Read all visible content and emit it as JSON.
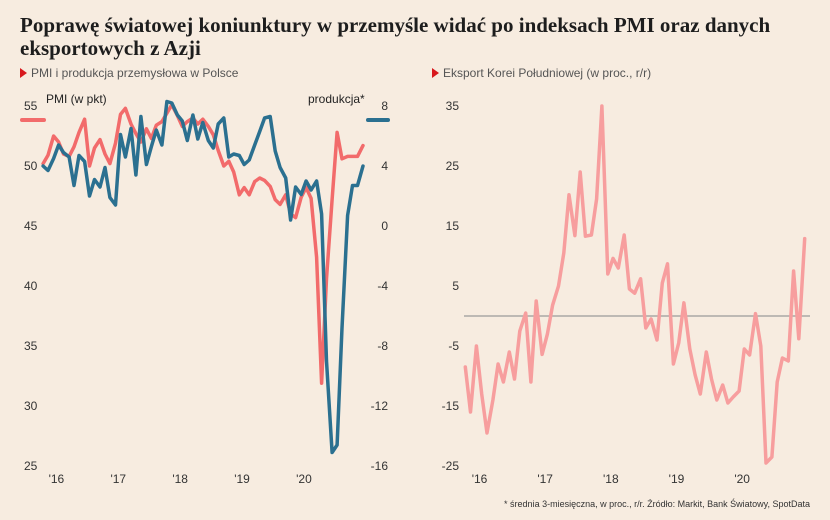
{
  "headline": "Poprawę światowej koniunktury w przemyśle widać po indeksach PMI oraz danych eksportowych z Azji",
  "source": "* średnia 3-miesięczna, w proc., r/r. Źródło: Markit, Bank Światowy, SpotData",
  "colors": {
    "pmi": "#f26b6b",
    "production": "#2b7090",
    "exports": "#f79e9e",
    "zero_line": "#9a9a9a",
    "marker": "#d8191e"
  },
  "chart_data": [
    {
      "type": "line",
      "title": "PMI i produkcja przemysłowa w Polsce",
      "x_tick_labels": [
        "'16",
        "'17",
        "'18",
        "'19",
        "'20"
      ],
      "x_tick_positions": [
        2016.0,
        2017.0,
        2018.0,
        2019.0,
        2020.0
      ],
      "xlim": [
        2015.7,
        2021.0
      ],
      "y_left": {
        "label": "PMI (w pkt)",
        "lim": [
          25,
          55
        ],
        "ticks": [
          25,
          30,
          35,
          40,
          45,
          50,
          55
        ]
      },
      "y_right": {
        "label": "produkcja*",
        "lim": [
          -16,
          8
        ],
        "ticks": [
          -16,
          -12,
          -8,
          -4,
          0,
          4,
          8
        ]
      },
      "series": [
        {
          "name": "PMI (w pkt)",
          "axis": "left",
          "color": "#f26b6b",
          "x": [
            2015.75,
            2015.83,
            2015.92,
            2016.0,
            2016.08,
            2016.17,
            2016.25,
            2016.33,
            2016.42,
            2016.5,
            2016.58,
            2016.67,
            2016.75,
            2016.83,
            2016.92,
            2017.0,
            2017.08,
            2017.17,
            2017.25,
            2017.33,
            2017.42,
            2017.5,
            2017.58,
            2017.67,
            2017.75,
            2017.83,
            2017.92,
            2018.0,
            2018.08,
            2018.17,
            2018.25,
            2018.33,
            2018.42,
            2018.5,
            2018.58,
            2018.67,
            2018.75,
            2018.83,
            2018.92,
            2019.0,
            2019.08,
            2019.17,
            2019.25,
            2019.33,
            2019.42,
            2019.5,
            2019.58,
            2019.67,
            2019.75,
            2019.83,
            2019.92,
            2020.0,
            2020.08,
            2020.17,
            2020.25,
            2020.33,
            2020.42,
            2020.5,
            2020.58,
            2020.67,
            2020.75,
            2020.83,
            2020.92
          ],
          "y": [
            50.2,
            50.9,
            52.5,
            52.0,
            51.0,
            50.8,
            51.6,
            52.8,
            53.9,
            50.0,
            51.5,
            52.2,
            51.0,
            50.2,
            51.9,
            54.3,
            54.8,
            53.5,
            52.7,
            52.0,
            53.1,
            52.3,
            53.4,
            53.7,
            54.4,
            55.1,
            54.2,
            53.3,
            53.7,
            54.0,
            53.5,
            53.9,
            53.3,
            52.6,
            51.3,
            50.0,
            50.4,
            49.5,
            47.6,
            48.2,
            47.6,
            48.7,
            49.0,
            48.8,
            48.3,
            47.2,
            46.8,
            47.6,
            46.0,
            45.7,
            47.4,
            48.2,
            47.3,
            42.4,
            31.9,
            40.6,
            47.2,
            52.8,
            50.6,
            50.8,
            50.8,
            50.8,
            51.7
          ]
        },
        {
          "name": "produkcja*",
          "axis": "right",
          "color": "#2b7090",
          "x": [
            2015.75,
            2015.83,
            2015.92,
            2016.0,
            2016.08,
            2016.17,
            2016.25,
            2016.33,
            2016.42,
            2016.5,
            2016.58,
            2016.67,
            2016.75,
            2016.83,
            2016.92,
            2017.0,
            2017.08,
            2017.17,
            2017.25,
            2017.33,
            2017.42,
            2017.5,
            2017.58,
            2017.67,
            2017.75,
            2017.83,
            2017.92,
            2018.0,
            2018.08,
            2018.17,
            2018.25,
            2018.33,
            2018.42,
            2018.5,
            2018.58,
            2018.67,
            2018.75,
            2018.83,
            2018.92,
            2019.0,
            2019.08,
            2019.17,
            2019.25,
            2019.33,
            2019.42,
            2019.5,
            2019.58,
            2019.67,
            2019.75,
            2019.83,
            2019.92,
            2020.0,
            2020.08,
            2020.17,
            2020.25,
            2020.33,
            2020.42,
            2020.5,
            2020.58,
            2020.67,
            2020.75,
            2020.83,
            2020.92
          ],
          "y": [
            4.0,
            3.7,
            4.5,
            5.4,
            4.9,
            4.6,
            2.7,
            4.7,
            4.3,
            2.0,
            3.1,
            2.6,
            3.9,
            1.9,
            1.4,
            6.1,
            4.6,
            6.5,
            3.4,
            7.3,
            4.1,
            5.3,
            6.4,
            5.4,
            8.3,
            8.2,
            7.4,
            7.0,
            5.7,
            7.4,
            5.8,
            6.9,
            5.7,
            5.2,
            6.8,
            7.2,
            4.6,
            4.8,
            4.7,
            4.1,
            4.4,
            5.4,
            6.3,
            7.2,
            7.3,
            5.0,
            3.9,
            3.2,
            0.4,
            2.6,
            2.1,
            3.0,
            2.4,
            3.0,
            0.8,
            -9.0,
            -15.1,
            -14.6,
            -6.8,
            0.7,
            2.7,
            2.7,
            4.0
          ]
        }
      ]
    },
    {
      "type": "line",
      "title": "Eksport Korei Południowej (w proc., r/r)",
      "x_tick_labels": [
        "'16",
        "'17",
        "'18",
        "'19",
        "'20"
      ],
      "x_tick_positions": [
        2016.0,
        2017.0,
        2018.0,
        2019.0,
        2020.0
      ],
      "xlim": [
        2015.7,
        2021.0
      ],
      "y_axis": {
        "lim": [
          -25,
          35
        ],
        "ticks": [
          -25,
          -15,
          -5,
          5,
          15,
          25,
          35
        ],
        "reference_line": 0
      },
      "series": [
        {
          "name": "Eksport Korei Południowej",
          "color": "#f79e9e",
          "x": [
            2015.75,
            2015.83,
            2015.92,
            2016.0,
            2016.08,
            2016.17,
            2016.25,
            2016.33,
            2016.42,
            2016.5,
            2016.58,
            2016.67,
            2016.75,
            2016.83,
            2016.92,
            2017.0,
            2017.08,
            2017.17,
            2017.25,
            2017.33,
            2017.42,
            2017.5,
            2017.58,
            2017.67,
            2017.75,
            2017.83,
            2017.92,
            2018.0,
            2018.08,
            2018.17,
            2018.25,
            2018.33,
            2018.42,
            2018.5,
            2018.58,
            2018.67,
            2018.75,
            2018.83,
            2018.92,
            2019.0,
            2019.08,
            2019.17,
            2019.25,
            2019.33,
            2019.42,
            2019.5,
            2019.58,
            2019.67,
            2019.75,
            2019.83,
            2019.92,
            2020.0,
            2020.08,
            2020.17,
            2020.25,
            2020.33,
            2020.42,
            2020.5,
            2020.58,
            2020.67,
            2020.75,
            2020.83,
            2020.92
          ],
          "y": [
            -8.5,
            -16.0,
            -5.0,
            -13.0,
            -19.5,
            -14.0,
            -8.0,
            -11.0,
            -6.0,
            -10.5,
            -2.5,
            0.5,
            -11.0,
            2.5,
            -6.4,
            -3.0,
            1.8,
            5.0,
            10.5,
            20.2,
            13.4,
            24.0,
            13.3,
            13.5,
            19.5,
            35.0,
            7.0,
            9.6,
            8.0,
            13.5,
            4.5,
            3.8,
            6.2,
            -2.0,
            -0.5,
            -4.0,
            5.5,
            8.7,
            -8.0,
            -4.5,
            2.2,
            -5.5,
            -9.8,
            -13.0,
            -6.0,
            -10.5,
            -14.0,
            -11.5,
            -14.5,
            -13.5,
            -12.5,
            -5.5,
            -6.5,
            0.4,
            -5.0,
            -24.5,
            -23.5,
            -11.0,
            -7.0,
            -7.5,
            7.5,
            -3.8,
            12.9
          ]
        }
      ]
    }
  ]
}
